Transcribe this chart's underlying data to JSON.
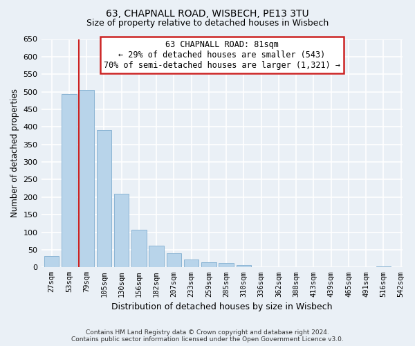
{
  "title": "63, CHAPNALL ROAD, WISBECH, PE13 3TU",
  "subtitle": "Size of property relative to detached houses in Wisbech",
  "xlabel": "Distribution of detached houses by size in Wisbech",
  "ylabel": "Number of detached properties",
  "bar_heights": [
    33,
    493,
    505,
    390,
    210,
    107,
    62,
    41,
    23,
    14,
    12,
    7,
    0,
    0,
    0,
    0,
    0,
    0,
    0,
    3
  ],
  "tick_labels": [
    "27sqm",
    "53sqm",
    "79sqm",
    "105sqm",
    "130sqm",
    "156sqm",
    "182sqm",
    "207sqm",
    "233sqm",
    "259sqm",
    "285sqm",
    "310sqm",
    "336sqm",
    "362sqm",
    "388sqm",
    "413sqm",
    "439sqm",
    "465sqm",
    "491sqm",
    "516sqm",
    "542sqm"
  ],
  "bar_color": "#b8d4ea",
  "bar_edge_color": "#8ab4d4",
  "ylim": [
    0,
    650
  ],
  "yticks": [
    0,
    50,
    100,
    150,
    200,
    250,
    300,
    350,
    400,
    450,
    500,
    550,
    600,
    650
  ],
  "annotation_title": "63 CHAPNALL ROAD: 81sqm",
  "annotation_line1": "← 29% of detached houses are smaller (543)",
  "annotation_line2": "70% of semi-detached houses are larger (1,321) →",
  "footer_line1": "Contains HM Land Registry data © Crown copyright and database right 2024.",
  "footer_line2": "Contains public sector information licensed under the Open Government Licence v3.0.",
  "bg_color": "#eaf0f6",
  "grid_color": "#ffffff",
  "red_line_bin": 2
}
